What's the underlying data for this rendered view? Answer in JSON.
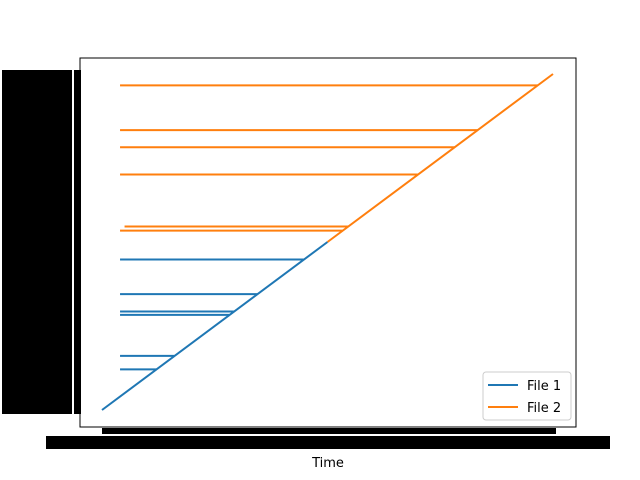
{
  "chart_data": {
    "type": "line",
    "title": "",
    "xlabel": "Time",
    "ylabel": "",
    "xlim": [
      0,
      1
    ],
    "ylim": [
      0,
      1
    ],
    "grid": false,
    "legend_placement": "bottom-right",
    "tick_labels_overlapping": true,
    "series": [
      {
        "name": "File 1",
        "color": "#1f77b4",
        "diagonal": [
          [
            0.0,
            0.0
          ],
          [
            0.5,
            0.5
          ]
        ],
        "horizontals": [
          {
            "y": 0.121,
            "x_start": 0.04,
            "x_end": 0.121
          },
          {
            "y": 0.161,
            "x_start": 0.04,
            "x_end": 0.161
          },
          {
            "y": 0.283,
            "x_start": 0.04,
            "x_end": 0.283
          },
          {
            "y": 0.293,
            "x_start": 0.04,
            "x_end": 0.293
          },
          {
            "y": 0.345,
            "x_start": 0.04,
            "x_end": 0.345
          },
          {
            "y": 0.448,
            "x_start": 0.04,
            "x_end": 0.448
          }
        ]
      },
      {
        "name": "File 2",
        "color": "#ff7f0e",
        "diagonal": [
          [
            0.5,
            0.5
          ],
          [
            1.0,
            1.0
          ]
        ],
        "horizontals": [
          {
            "y": 0.534,
            "x_start": 0.04,
            "x_end": 0.534
          },
          {
            "y": 0.546,
            "x_start": 0.05,
            "x_end": 0.546
          },
          {
            "y": 0.701,
            "x_start": 0.04,
            "x_end": 0.701
          },
          {
            "y": 0.782,
            "x_start": 0.04,
            "x_end": 0.782
          },
          {
            "y": 0.833,
            "x_start": 0.04,
            "x_end": 0.833
          },
          {
            "y": 0.966,
            "x_start": 0.04,
            "x_end": 0.966
          }
        ]
      }
    ]
  }
}
